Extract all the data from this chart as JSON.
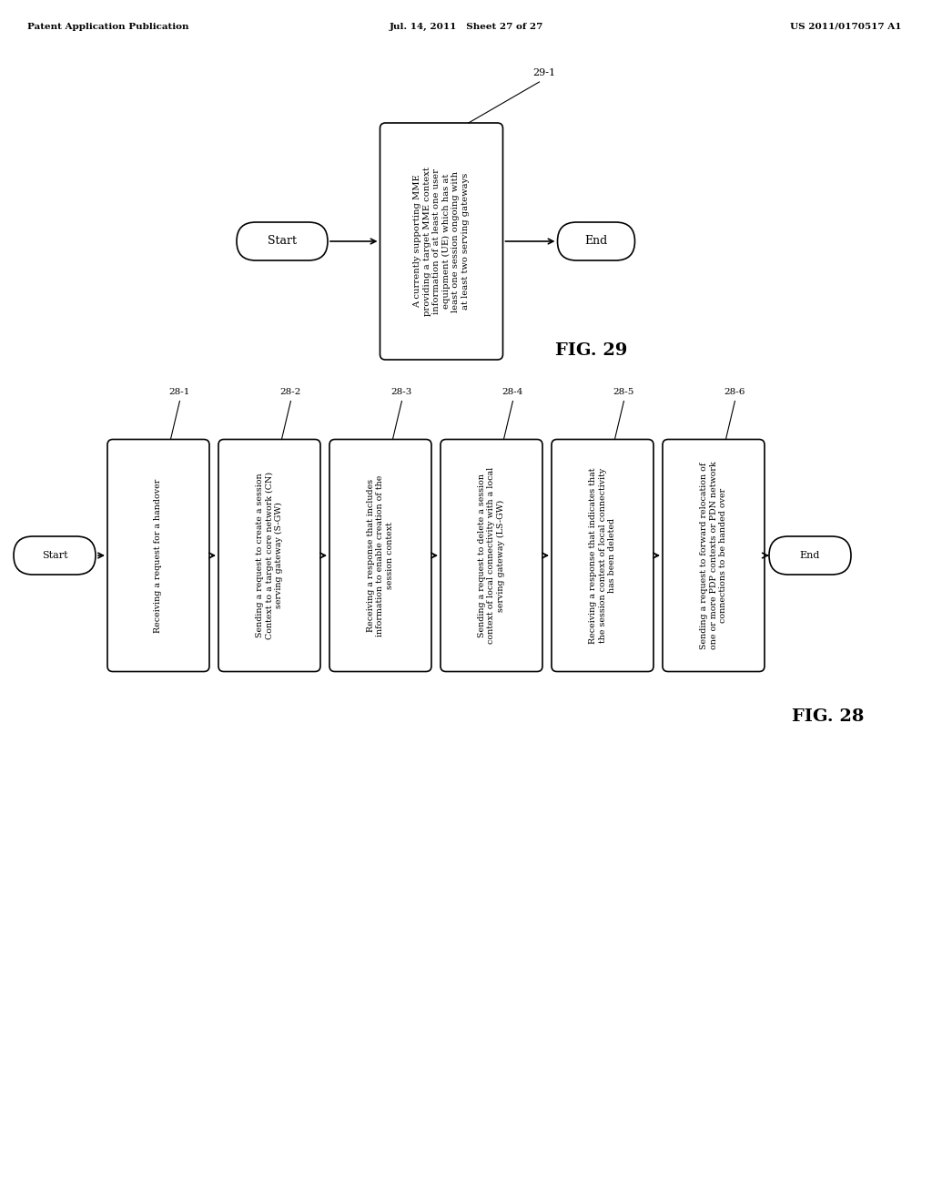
{
  "bg_color": "#ffffff",
  "header_left": "Patent Application Publication",
  "header_center": "Jul. 14, 2011   Sheet 27 of 27",
  "header_right": "US 2011/0170517 A1",
  "fig29": {
    "title": "FIG. 29",
    "start_label": "Start",
    "end_label": "End",
    "box_label": "29-1",
    "box_text": "A currently supporting MME\nproviding a target MME context\ninformation of at least one user\nequipment (UE) which has at\nleast one session ongoing with\nat least two serving gateways"
  },
  "fig28": {
    "title": "FIG. 28",
    "start_label": "Start",
    "end_label": "End",
    "steps": [
      {
        "label": "28-1",
        "text": "Receiving a request for a handover"
      },
      {
        "label": "28-2",
        "text": "Sending a request to create a session\nContext to a target core network (CN)\nserving gateway (S-GW)"
      },
      {
        "label": "28-3",
        "text": "Receiving a response that includes\ninformation to enable creation of the\nsession context"
      },
      {
        "label": "28-4",
        "text": "Sending a request to delete a session\ncontext of local connectivity with a local\nserving gateway (LS-GW)"
      },
      {
        "label": "28-5",
        "text": "Receiving a response that indicates that\nthe session context of local connectivity\nhas been deleted"
      },
      {
        "label": "28-6",
        "text": "Sending a request to forward relocation of\none or more PDP contexts or PDN network\nconnections to be handed over"
      }
    ]
  }
}
